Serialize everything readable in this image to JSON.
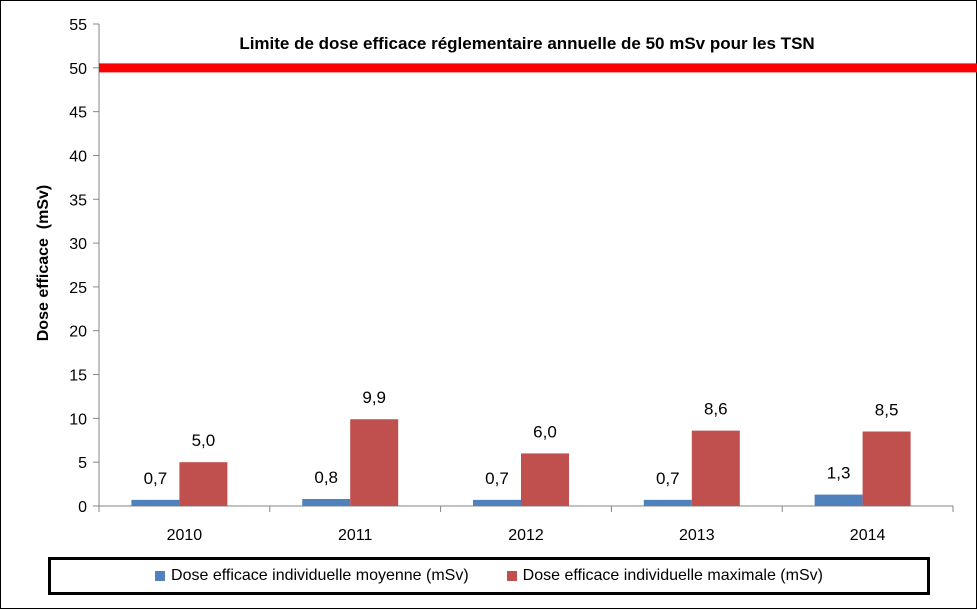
{
  "chart_data": {
    "type": "bar",
    "title": "",
    "xlabel": "",
    "ylabel": "Dose efficace  (mSv)",
    "categories": [
      "2010",
      "2011",
      "2012",
      "2013",
      "2014"
    ],
    "ylim": [
      0,
      55
    ],
    "yticks": [
      0,
      5,
      10,
      15,
      20,
      25,
      30,
      35,
      40,
      45,
      50,
      55
    ],
    "grid": false,
    "legend_position": "bottom",
    "series": [
      {
        "name": "Dose efficace individuelle moyenne (mSv)",
        "values": [
          0.7,
          0.8,
          0.7,
          0.7,
          1.3
        ],
        "labels": [
          "0,7",
          "0,8",
          "0,7",
          "0,7",
          "1,3"
        ],
        "color": "#4f81bd"
      },
      {
        "name": "Dose efficace individuelle maximale (mSv)",
        "values": [
          5.0,
          9.9,
          6.0,
          8.6,
          8.5
        ],
        "labels": [
          "5,0",
          "9,9",
          "6,0",
          "8,6",
          "8,5"
        ],
        "color": "#c0504d"
      }
    ],
    "reference_line": {
      "value": 50,
      "label": "Limite de dose efficace réglementaire annuelle de 50 mSv pour  les TSN",
      "color": "#ff0000"
    }
  }
}
